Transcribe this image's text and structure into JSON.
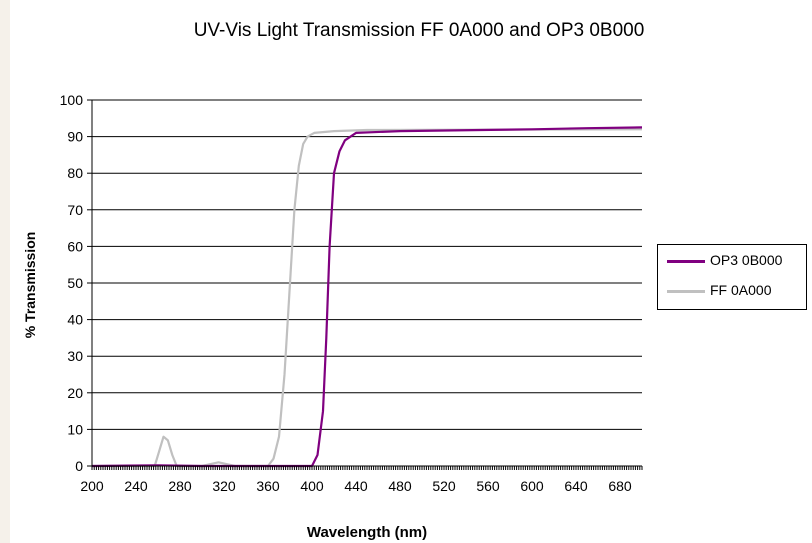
{
  "chart_data": {
    "type": "line",
    "title": "UV-Vis Light Transmission FF 0A000 and OP3 0B000",
    "xlabel": "Wavelength (nm)",
    "ylabel": "% Transmission",
    "xlim": [
      200,
      700
    ],
    "ylim": [
      0,
      100
    ],
    "x_ticks": [
      200,
      240,
      280,
      320,
      360,
      400,
      440,
      480,
      520,
      560,
      600,
      640,
      680
    ],
    "y_ticks": [
      0,
      10,
      20,
      30,
      40,
      50,
      60,
      70,
      80,
      90,
      100
    ],
    "grid": "horizontal",
    "legend_position": "right",
    "series": [
      {
        "name": "OP3 0B000",
        "color": "#800080",
        "points": [
          [
            200,
            0
          ],
          [
            260,
            0.2
          ],
          [
            300,
            0
          ],
          [
            380,
            0
          ],
          [
            400,
            0
          ],
          [
            405,
            3
          ],
          [
            410,
            15
          ],
          [
            413,
            35
          ],
          [
            416,
            60
          ],
          [
            420,
            80
          ],
          [
            425,
            86
          ],
          [
            430,
            89
          ],
          [
            440,
            91
          ],
          [
            480,
            91.5
          ],
          [
            600,
            92
          ],
          [
            650,
            92.3
          ],
          [
            700,
            92.5
          ]
        ]
      },
      {
        "name": "FF 0A000",
        "color": "#c0c0c0",
        "points": [
          [
            200,
            0
          ],
          [
            257,
            0
          ],
          [
            261,
            4
          ],
          [
            265,
            8
          ],
          [
            269,
            7
          ],
          [
            273,
            3
          ],
          [
            277,
            0
          ],
          [
            300,
            0
          ],
          [
            315,
            1
          ],
          [
            330,
            0
          ],
          [
            360,
            0
          ],
          [
            365,
            2
          ],
          [
            370,
            8
          ],
          [
            375,
            25
          ],
          [
            380,
            50
          ],
          [
            384,
            70
          ],
          [
            388,
            82
          ],
          [
            392,
            88
          ],
          [
            396,
            90
          ],
          [
            402,
            91
          ],
          [
            420,
            91.5
          ],
          [
            450,
            91.8
          ],
          [
            700,
            92
          ]
        ]
      }
    ]
  }
}
